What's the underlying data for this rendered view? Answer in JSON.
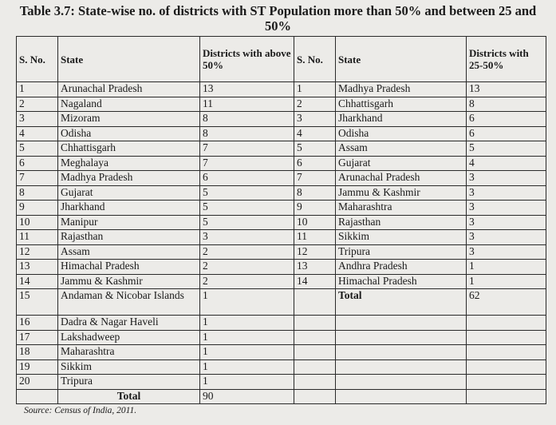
{
  "title": "Table 3.7: State-wise no. of districts with ST Population more than 50% and between 25 and 50%",
  "headers": {
    "sno_left": "S. No.",
    "state_left": "State",
    "districts_left": "Districts with above 50%",
    "sno_right": "S. No.",
    "state_right": "State",
    "districts_right": "Districts with 25-50%"
  },
  "left_rows": [
    {
      "sno": "1",
      "state": "Arunachal Pradesh",
      "count": "13"
    },
    {
      "sno": "2",
      "state": "Nagaland",
      "count": "11"
    },
    {
      "sno": "3",
      "state": "Mizoram",
      "count": "8"
    },
    {
      "sno": "4",
      "state": "Odisha",
      "count": "8"
    },
    {
      "sno": "5",
      "state": "Chhattisgarh",
      "count": "7"
    },
    {
      "sno": "6",
      "state": "Meghalaya",
      "count": "7"
    },
    {
      "sno": "7",
      "state": "Madhya Pradesh",
      "count": "6"
    },
    {
      "sno": "8",
      "state": "Gujarat",
      "count": "5"
    },
    {
      "sno": "9",
      "state": "Jharkhand",
      "count": "5"
    },
    {
      "sno": "10",
      "state": "Manipur",
      "count": "5"
    },
    {
      "sno": "11",
      "state": "Rajasthan",
      "count": "3"
    },
    {
      "sno": "12",
      "state": "Assam",
      "count": "2"
    },
    {
      "sno": "13",
      "state": "Himachal Pradesh",
      "count": "2"
    },
    {
      "sno": "14",
      "state": "Jammu & Kashmir",
      "count": "2"
    },
    {
      "sno": "15",
      "state": "Andaman & Nicobar Islands",
      "count": "1"
    },
    {
      "sno": "16",
      "state": "Dadra & Nagar Haveli",
      "count": "1"
    },
    {
      "sno": "17",
      "state": "Lakshadweep",
      "count": "1"
    },
    {
      "sno": "18",
      "state": "Maharashtra",
      "count": "1"
    },
    {
      "sno": "19",
      "state": "Sikkim",
      "count": "1"
    },
    {
      "sno": "20",
      "state": "Tripura",
      "count": "1"
    }
  ],
  "left_total": {
    "label": "Total",
    "value": "90"
  },
  "right_rows": [
    {
      "sno": "1",
      "state": "Madhya Pradesh",
      "count": "13"
    },
    {
      "sno": "2",
      "state": "Chhattisgarh",
      "count": "8"
    },
    {
      "sno": "3",
      "state": "Jharkhand",
      "count": "6"
    },
    {
      "sno": "4",
      "state": "Odisha",
      "count": "6"
    },
    {
      "sno": "5",
      "state": "Assam",
      "count": "5"
    },
    {
      "sno": "6",
      "state": "Gujarat",
      "count": "4"
    },
    {
      "sno": "7",
      "state": "Arunachal Pradesh",
      "count": "3"
    },
    {
      "sno": "8",
      "state": "Jammu & Kashmir",
      "count": "3"
    },
    {
      "sno": "9",
      "state": "Maharashtra",
      "count": "3"
    },
    {
      "sno": "10",
      "state": "Rajasthan",
      "count": "3"
    },
    {
      "sno": "11",
      "state": "Sikkim",
      "count": "3"
    },
    {
      "sno": "12",
      "state": "Tripura",
      "count": "3"
    },
    {
      "sno": "13",
      "state": "Andhra Pradesh",
      "count": "1"
    },
    {
      "sno": "14",
      "state": "Himachal Pradesh",
      "count": "1"
    }
  ],
  "right_total": {
    "label": "Total",
    "value": "62"
  },
  "source": "Source: Census of India, 2011."
}
